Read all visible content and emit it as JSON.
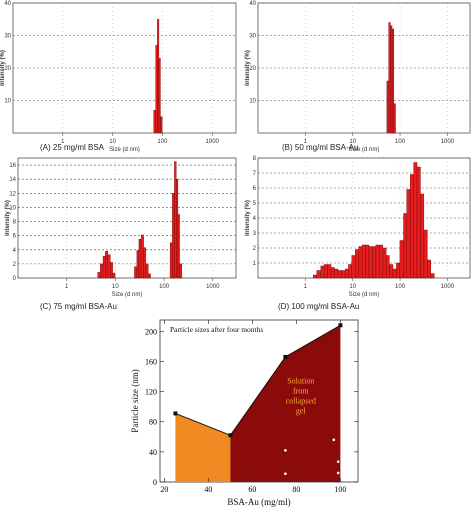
{
  "chart_data": [
    {
      "type": "bar",
      "caption": "(A)  25 mg/ml BSA",
      "xlabel": "Size (d nm)",
      "ylabel": "Intensity (%)",
      "xscale": "log",
      "xlim": [
        0.1,
        3000
      ],
      "ylim": [
        0,
        40
      ],
      "x_ticks": [
        "1",
        "10",
        "100",
        "1000"
      ],
      "y_ticks": [
        "10",
        "20",
        "30",
        "40"
      ],
      "bar_centers": [
        70,
        76,
        82,
        88,
        95
      ],
      "values": [
        7,
        27,
        35,
        23,
        5
      ]
    },
    {
      "type": "bar",
      "caption": "(B)  50 mg/ml BSA-Au",
      "xlabel": "Size (d nm)",
      "ylabel": "Intensity (%)",
      "xscale": "log",
      "xlim": [
        0.1,
        3000
      ],
      "ylim": [
        0,
        40
      ],
      "x_ticks": [
        "1",
        "10",
        "100",
        "1000"
      ],
      "y_ticks": [
        "10",
        "20",
        "30",
        "40"
      ],
      "bar_centers": [
        55,
        60,
        65,
        71,
        77
      ],
      "values": [
        16,
        34,
        33,
        32,
        9
      ]
    },
    {
      "type": "bar",
      "caption": "(C)  75 mg/ml BSA-Au",
      "xlabel": "Size (d nm)",
      "ylabel": "Intensity (%)",
      "xscale": "log",
      "xlim": [
        0.1,
        3000
      ],
      "ylim": [
        0,
        17
      ],
      "x_ticks": [
        "1",
        "10",
        "100",
        "1000"
      ],
      "y_ticks": [
        "0",
        "2",
        "4",
        "6",
        "8",
        "10",
        "12",
        "14",
        "16"
      ],
      "bar_centers": [
        4.6,
        5.2,
        5.9,
        6.6,
        7.4,
        8.3,
        9.3,
        26,
        29,
        32,
        36,
        40,
        45,
        50,
        140,
        155,
        170,
        185,
        200,
        220
      ],
      "values": [
        0.8,
        2.0,
        3.1,
        3.8,
        3.3,
        2.2,
        0.7,
        1.6,
        3.9,
        5.5,
        6.1,
        4.3,
        2.0,
        0.6,
        5.0,
        12.0,
        16.5,
        14.0,
        9.0,
        2.0
      ]
    },
    {
      "type": "bar",
      "caption": "(D)  100 mg/ml BSA-Au",
      "xlabel": "Size (d nm)",
      "ylabel": "Intensity (%)",
      "xscale": "log",
      "xlim": [
        0.1,
        3000
      ],
      "ylim": [
        0,
        8
      ],
      "x_ticks": [
        "1",
        "10",
        "100",
        "1000"
      ],
      "y_ticks": [
        "1",
        "2",
        "3",
        "4",
        "5",
        "6",
        "7",
        "8"
      ],
      "bar_centers": [
        1.6,
        1.9,
        2.3,
        2.7,
        3.2,
        3.8,
        4.5,
        5.3,
        6.3,
        7.5,
        8.8,
        10.4,
        12.3,
        14.5,
        17.2,
        20.3,
        24,
        28.5,
        33.5,
        39.5,
        47,
        55,
        65,
        77,
        91,
        108,
        128,
        150,
        178,
        210,
        248,
        293,
        347,
        410,
        485
      ],
      "values": [
        0.2,
        0.5,
        0.8,
        0.9,
        0.9,
        0.7,
        0.6,
        0.5,
        0.5,
        0.6,
        0.9,
        1.5,
        1.9,
        2.1,
        2.2,
        2.2,
        2.1,
        2.1,
        2.2,
        2.2,
        2.0,
        1.5,
        0.9,
        0.6,
        1.0,
        2.5,
        4.3,
        5.9,
        6.9,
        7.7,
        7.4,
        5.6,
        3.2,
        1.2,
        0.3
      ]
    },
    {
      "type": "area",
      "title": "Particle sizes after four months",
      "xlabel": "BSA-Au (mg/ml)",
      "ylabel": "Particle size (nm)",
      "xlim": [
        18,
        108
      ],
      "ylim": [
        0,
        215
      ],
      "x_ticks": [
        "20",
        "40",
        "60",
        "80",
        "100"
      ],
      "y_ticks": [
        "0",
        "40",
        "80",
        "120",
        "160",
        "200"
      ],
      "x": [
        25,
        50,
        75,
        100
      ],
      "y": [
        91,
        62,
        166,
        208
      ],
      "regions": [
        {
          "x": [
            25,
            50
          ],
          "y": [
            91,
            62
          ],
          "color": "#f28a24"
        },
        {
          "x": [
            50,
            75,
            100
          ],
          "y": [
            62,
            166,
            208
          ],
          "color": "#8b0b0b"
        }
      ],
      "annotation": "Solution\nfrom\ncollapsed\ngel",
      "annotation_color": "#f4a935",
      "white_dots": [
        [
          75,
          42
        ],
        [
          75,
          11
        ],
        [
          97,
          56
        ],
        [
          99,
          27
        ],
        [
          99,
          12
        ]
      ]
    }
  ],
  "colors": {
    "bar": "#e41e1e",
    "bar_edge": "#7a0000",
    "orange": "#f28a24",
    "darkred": "#8b0b0b"
  }
}
